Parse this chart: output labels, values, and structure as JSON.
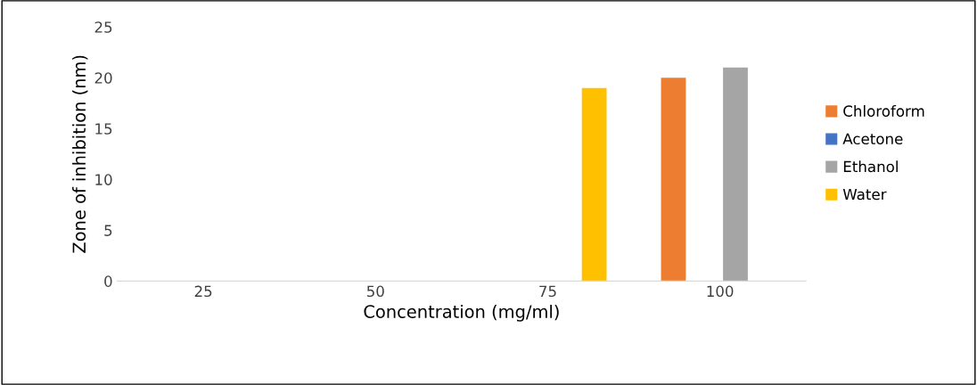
{
  "chart_data": {
    "type": "bar",
    "xlabel": "Concentration (mg/ml)",
    "ylabel": "Zone of inhibition (nm)",
    "categories": [
      "25",
      "50",
      "75",
      "100"
    ],
    "series": [
      {
        "name": "Chloroform",
        "color": "#ed7d31",
        "values": [
          0,
          0,
          0,
          20
        ]
      },
      {
        "name": "Acetone",
        "color": "#4472c4",
        "values": [
          0,
          0,
          0,
          0
        ]
      },
      {
        "name": "Ethanol",
        "color": "#a5a5a5",
        "values": [
          0,
          0,
          0,
          21
        ]
      },
      {
        "name": "Water",
        "color": "#ffc000",
        "values": [
          0,
          0,
          19,
          0
        ]
      }
    ],
    "ylim": [
      0,
      25
    ],
    "yticks": [
      0,
      5,
      10,
      15,
      20,
      25
    ],
    "grid": false,
    "legend": "right"
  }
}
